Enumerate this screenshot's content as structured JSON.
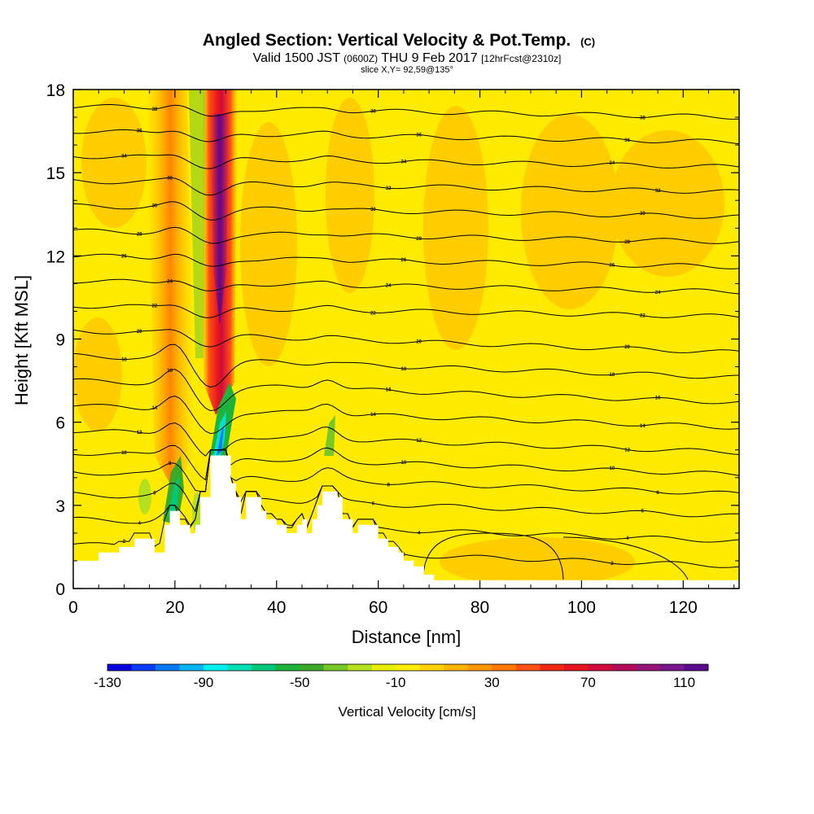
{
  "chart_data": {
    "type": "heatmap",
    "title": "Angled Section: Vertical Velocity & Pot.Temp.",
    "title_unit": "(C)",
    "subtitle": {
      "valid": "Valid 1500 JST",
      "utc": "(0600Z)",
      "date": "THU 9 Feb 2017",
      "forecast": "[12hrFcst@2310z]"
    },
    "slice_label": "slice X,Y= 92,59@135°",
    "xlabel": "Distance [nm]",
    "ylabel": "Height [Kft MSL]",
    "xlim": [
      0,
      131
    ],
    "ylim": [
      0,
      18
    ],
    "x_ticks": [
      "0",
      "20",
      "40",
      "60",
      "80",
      "100",
      "120"
    ],
    "y_ticks": [
      "0",
      "3",
      "6",
      "9",
      "12",
      "15",
      "18"
    ],
    "colorbar": {
      "label": "Vertical Velocity [cm/s]",
      "ticks": [
        "-130",
        "-90",
        "-50",
        "-10",
        "30",
        "70",
        "110"
      ],
      "range": [
        -130,
        120
      ],
      "colors": [
        "#0a00e0",
        "#0a3cf5",
        "#0a78f0",
        "#0ab4f0",
        "#00f0f0",
        "#00e0b4",
        "#00c878",
        "#1eb43c",
        "#3caa28",
        "#78c828",
        "#b4e01e",
        "#e6f000",
        "#ffeb00",
        "#ffd200",
        "#ffb400",
        "#ff9600",
        "#ff7800",
        "#ff5014",
        "#f02814",
        "#e6141e",
        "#d20a3c",
        "#b40a5a",
        "#961478",
        "#78148c",
        "#5a0a8c"
      ]
    },
    "terrain": [
      [
        0,
        1.0
      ],
      [
        5,
        1.0
      ],
      [
        5,
        1.3
      ],
      [
        9,
        1.3
      ],
      [
        9,
        1.5
      ],
      [
        12,
        1.5
      ],
      [
        12,
        1.8
      ],
      [
        16,
        1.8
      ],
      [
        16,
        1.3
      ],
      [
        18,
        1.3
      ],
      [
        18,
        2.3
      ],
      [
        19,
        2.3
      ],
      [
        19,
        2.8
      ],
      [
        21,
        2.8
      ],
      [
        21,
        2.3
      ],
      [
        23,
        2.3
      ],
      [
        23,
        2.0
      ],
      [
        24,
        2.0
      ],
      [
        24,
        2.3
      ],
      [
        25,
        2.3
      ],
      [
        25,
        3.3
      ],
      [
        27,
        3.3
      ],
      [
        27,
        4.8
      ],
      [
        31,
        4.8
      ],
      [
        31,
        3.8
      ],
      [
        32,
        3.8
      ],
      [
        32,
        3.3
      ],
      [
        33,
        3.3
      ],
      [
        33,
        2.5
      ],
      [
        34,
        2.5
      ],
      [
        34,
        3.3
      ],
      [
        37,
        3.3
      ],
      [
        37,
        2.8
      ],
      [
        38,
        2.8
      ],
      [
        38,
        2.5
      ],
      [
        40,
        2.5
      ],
      [
        40,
        2.3
      ],
      [
        42,
        2.3
      ],
      [
        42,
        2.0
      ],
      [
        44,
        2.0
      ],
      [
        44,
        2.3
      ],
      [
        45,
        2.3
      ],
      [
        45,
        2.5
      ],
      [
        46,
        2.5
      ],
      [
        46,
        2.0
      ],
      [
        47,
        2.0
      ],
      [
        47,
        2.5
      ],
      [
        48,
        2.5
      ],
      [
        48,
        3.0
      ],
      [
        49,
        3.0
      ],
      [
        49,
        3.5
      ],
      [
        52,
        3.5
      ],
      [
        52,
        3.3
      ],
      [
        53,
        3.3
      ],
      [
        53,
        2.5
      ],
      [
        55,
        2.5
      ],
      [
        55,
        2.0
      ],
      [
        56,
        2.0
      ],
      [
        56,
        2.3
      ],
      [
        60,
        2.3
      ],
      [
        60,
        1.8
      ],
      [
        62,
        1.8
      ],
      [
        62,
        1.5
      ],
      [
        64,
        1.5
      ],
      [
        64,
        1.3
      ],
      [
        65,
        1.3
      ],
      [
        65,
        1.0
      ],
      [
        67,
        1.0
      ],
      [
        67,
        0.8
      ],
      [
        69,
        0.8
      ],
      [
        69,
        0.5
      ],
      [
        71,
        0.5
      ],
      [
        71,
        0.3
      ],
      [
        131,
        0.3
      ]
    ],
    "theta_contours": [
      {
        "value": 2,
        "height": 1.6
      },
      {
        "value": 4,
        "height": 2.5
      },
      {
        "value": 6,
        "height": 3.4
      },
      {
        "value": 8,
        "height": 4.2
      },
      {
        "value": 10,
        "height": 4.9
      },
      {
        "value": 12,
        "height": 5.7
      },
      {
        "value": 14,
        "height": 6.6
      },
      {
        "value": 16,
        "height": 7.5
      },
      {
        "value": 18,
        "height": 8.4
      },
      {
        "value": 20,
        "height": 9.3
      },
      {
        "value": 22,
        "height": 10.2
      },
      {
        "value": 24,
        "height": 11.1
      },
      {
        "value": 26,
        "height": 12.0
      },
      {
        "value": 28,
        "height": 12.9
      },
      {
        "value": 30,
        "height": 13.8
      },
      {
        "value": 32,
        "height": 14.7
      },
      {
        "value": 34,
        "height": 15.6
      },
      {
        "value": 36,
        "height": 16.5
      },
      {
        "value": 38,
        "height": 17.4
      }
    ]
  }
}
